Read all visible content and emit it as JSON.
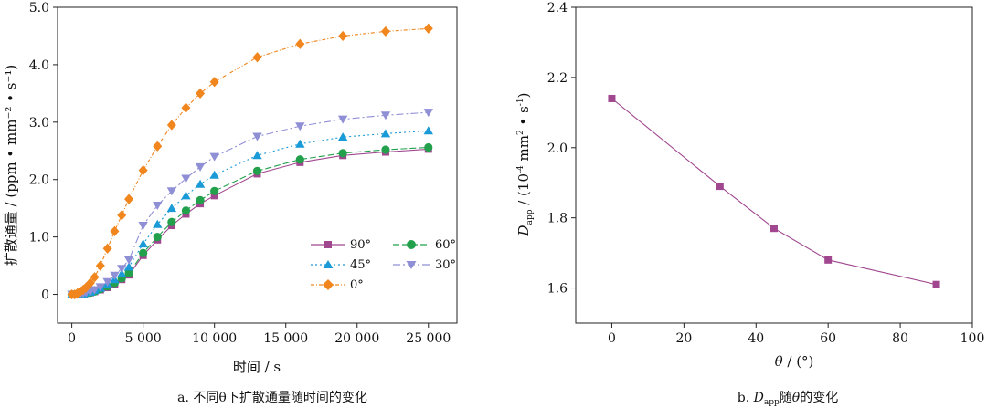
{
  "chart_data": [
    {
      "type": "line",
      "title": "",
      "caption": "a. 不同θ下扩散通量随时间的变化",
      "xlabel": "时间 / s",
      "ylabel": "扩散通量 / (ppm • mm⁻² • s⁻¹)",
      "xlim": [
        -1000,
        27000
      ],
      "ylim": [
        -0.5,
        5.0
      ],
      "xticks": [
        0,
        5000,
        10000,
        15000,
        20000,
        25000
      ],
      "xtick_labels": [
        "0",
        "5 000",
        "10 000",
        "15 000",
        "20 000",
        "25 000"
      ],
      "yticks": [
        0,
        1,
        2,
        3,
        4,
        5
      ],
      "ytick_labels": [
        "0",
        "1.0",
        "2.0",
        "3.0",
        "4.0",
        "5.0"
      ],
      "legend_position": "lower-right",
      "x": [
        0,
        200,
        400,
        600,
        800,
        1000,
        1300,
        1600,
        2000,
        2500,
        3000,
        3500,
        4000,
        5000,
        6000,
        7000,
        8000,
        9000,
        10000,
        13000,
        16000,
        19000,
        22000,
        25000
      ],
      "series": [
        {
          "name": "90°",
          "color": "#a0478f",
          "marker": "square",
          "dash": "",
          "values": [
            0,
            0,
            0,
            0,
            0.01,
            0.02,
            0.03,
            0.05,
            0.08,
            0.12,
            0.18,
            0.26,
            0.34,
            0.68,
            0.95,
            1.2,
            1.4,
            1.58,
            1.72,
            2.1,
            2.3,
            2.42,
            2.48,
            2.53
          ]
        },
        {
          "name": "60°",
          "color": "#22a04c",
          "marker": "circle",
          "dash": "7,3",
          "values": [
            0,
            0,
            0,
            0,
            0.01,
            0.02,
            0.03,
            0.05,
            0.09,
            0.14,
            0.2,
            0.28,
            0.37,
            0.72,
            1.0,
            1.26,
            1.46,
            1.64,
            1.8,
            2.15,
            2.35,
            2.46,
            2.52,
            2.56
          ]
        },
        {
          "name": "45°",
          "color": "#1a9ad6",
          "marker": "triangle-up",
          "dash": "2,3",
          "values": [
            0,
            0,
            0,
            0,
            0.01,
            0.03,
            0.04,
            0.07,
            0.11,
            0.18,
            0.26,
            0.36,
            0.48,
            0.88,
            1.22,
            1.5,
            1.72,
            1.92,
            2.08,
            2.42,
            2.62,
            2.74,
            2.8,
            2.85
          ]
        },
        {
          "name": "30°",
          "color": "#8f8fd6",
          "marker": "triangle-down",
          "dash": "8,3,2,3",
          "values": [
            0,
            0,
            0,
            0,
            0.02,
            0.03,
            0.05,
            0.08,
            0.13,
            0.22,
            0.33,
            0.45,
            0.6,
            1.2,
            1.55,
            1.8,
            2.02,
            2.22,
            2.4,
            2.75,
            2.93,
            3.05,
            3.12,
            3.17
          ]
        },
        {
          "name": "0°",
          "color": "#f0861d",
          "marker": "diamond",
          "dash": "4,2,1,2",
          "values": [
            0,
            0,
            0.02,
            0.05,
            0.08,
            0.12,
            0.2,
            0.3,
            0.5,
            0.8,
            1.1,
            1.38,
            1.66,
            2.16,
            2.58,
            2.95,
            3.25,
            3.5,
            3.7,
            4.13,
            4.36,
            4.5,
            4.58,
            4.63
          ]
        }
      ]
    },
    {
      "type": "line",
      "title": "",
      "caption_prefix": "b. ",
      "caption_d": "D",
      "caption_sub": "app",
      "caption_mid": "随",
      "caption_theta": "θ",
      "caption_suffix": "的变化",
      "xlabel_theta": "θ",
      "xlabel_unit": " / (°)",
      "ylabel_d": "D",
      "ylabel_sub": "app",
      "ylabel_rest": " / (10",
      "ylabel_exp1": "-4",
      "ylabel_rest2": " mm",
      "ylabel_exp2": "2",
      "ylabel_rest3": " • s",
      "ylabel_exp3": "-1",
      "ylabel_rest4": ")",
      "xlim": [
        -10,
        100
      ],
      "ylim": [
        1.5,
        2.4
      ],
      "xticks": [
        0,
        20,
        40,
        60,
        80,
        100
      ],
      "xtick_labels": [
        "0",
        "20",
        "40",
        "60",
        "80",
        "100"
      ],
      "yticks": [
        1.6,
        1.8,
        2.0,
        2.2,
        2.4
      ],
      "ytick_labels": [
        "1.6",
        "1.8",
        "2.0",
        "2.2",
        "2.4"
      ],
      "series": [
        {
          "name": "Dapp",
          "color": "#a0478f",
          "marker": "square",
          "x": [
            0,
            30,
            45,
            60,
            90
          ],
          "values": [
            2.14,
            1.89,
            1.77,
            1.68,
            1.61
          ]
        }
      ]
    }
  ]
}
